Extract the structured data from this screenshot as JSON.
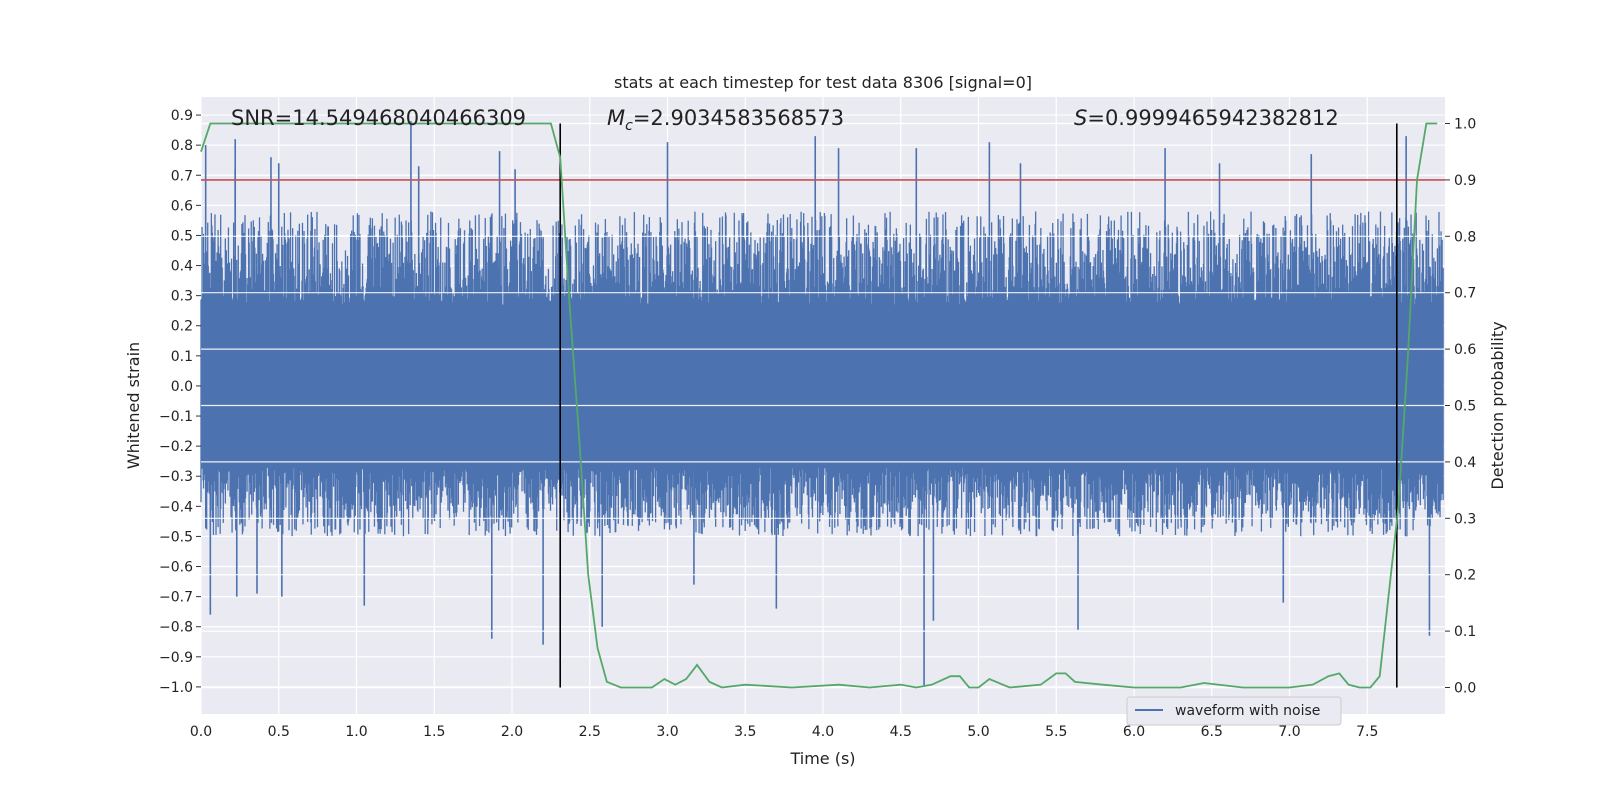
{
  "chart_data": {
    "type": "line",
    "title": "stats at each timestep for test data 8306 [signal=0]",
    "xlabel": "Time (s)",
    "ylabel": "Whitened strain",
    "y2label": "Detection probability",
    "xlim": [
      0.0,
      8.0
    ],
    "ylim": [
      -1.09,
      0.96
    ],
    "y2lim": [
      -0.047,
      1.047
    ],
    "xticks": [
      "0.0",
      "0.5",
      "1.0",
      "1.5",
      "2.0",
      "2.5",
      "3.0",
      "3.5",
      "4.0",
      "4.5",
      "5.0",
      "5.5",
      "6.0",
      "6.5",
      "7.0",
      "7.5"
    ],
    "yticks": [
      "-1.0",
      "-0.9",
      "-0.8",
      "-0.7",
      "-0.6",
      "-0.5",
      "-0.4",
      "-0.3",
      "-0.2",
      "-0.1",
      "0.0",
      "0.1",
      "0.2",
      "0.3",
      "0.4",
      "0.5",
      "0.6",
      "0.7",
      "0.8",
      "0.9"
    ],
    "y2ticks": [
      "0.0",
      "0.1",
      "0.2",
      "0.3",
      "0.4",
      "0.5",
      "0.6",
      "0.7",
      "0.8",
      "0.9",
      "1.0"
    ],
    "grid": true,
    "legend_position": "lower-right",
    "annotations": {
      "snr": "SNR=14.549468040466309",
      "mc_symbol": "M",
      "mc_sub": "c",
      "mc_value": "=2.9034583568573",
      "s_symbol": "S",
      "s_value": "=0.9999465942382812"
    },
    "vertical_lines": [
      2.31,
      7.69
    ],
    "threshold": {
      "axis": "right",
      "value": 0.9
    },
    "waveform": {
      "name": "waveform with noise",
      "baseline_abs": 0.27,
      "typical_max": 0.58,
      "typical_min": -0.5,
      "peaks": [
        {
          "x": 0.03,
          "y": 0.8
        },
        {
          "x": 0.06,
          "y": -0.76
        },
        {
          "x": 0.23,
          "y": -0.7
        },
        {
          "x": 0.22,
          "y": 0.72
        },
        {
          "x": 0.22,
          "y": 0.82
        },
        {
          "x": 0.36,
          "y": -0.69
        },
        {
          "x": 0.45,
          "y": 0.76
        },
        {
          "x": 0.5,
          "y": 0.74
        },
        {
          "x": 0.52,
          "y": -0.7
        },
        {
          "x": 1.05,
          "y": -0.73
        },
        {
          "x": 1.35,
          "y": 0.88
        },
        {
          "x": 1.4,
          "y": 0.73
        },
        {
          "x": 1.87,
          "y": -0.84
        },
        {
          "x": 1.92,
          "y": 0.78
        },
        {
          "x": 2.02,
          "y": 0.72
        },
        {
          "x": 2.2,
          "y": -0.86
        },
        {
          "x": 2.58,
          "y": -0.8
        },
        {
          "x": 3.0,
          "y": 0.81
        },
        {
          "x": 3.17,
          "y": -0.66
        },
        {
          "x": 3.7,
          "y": -0.74
        },
        {
          "x": 3.95,
          "y": 0.83
        },
        {
          "x": 4.1,
          "y": 0.79
        },
        {
          "x": 4.6,
          "y": 0.79
        },
        {
          "x": 4.65,
          "y": -1.0
        },
        {
          "x": 4.71,
          "y": -0.78
        },
        {
          "x": 5.07,
          "y": 0.81
        },
        {
          "x": 5.27,
          "y": 0.74
        },
        {
          "x": 5.64,
          "y": -0.81
        },
        {
          "x": 6.2,
          "y": 0.79
        },
        {
          "x": 6.55,
          "y": 0.74
        },
        {
          "x": 6.96,
          "y": -0.72
        },
        {
          "x": 7.14,
          "y": 0.77
        },
        {
          "x": 7.75,
          "y": 0.83
        },
        {
          "x": 7.9,
          "y": -0.83
        }
      ]
    },
    "probability": {
      "x": [
        0.0,
        0.06,
        0.12,
        0.5,
        1.0,
        1.5,
        2.0,
        2.25,
        2.31,
        2.37,
        2.43,
        2.49,
        2.55,
        2.61,
        2.7,
        2.9,
        2.98,
        3.05,
        3.12,
        3.19,
        3.27,
        3.35,
        3.5,
        3.8,
        4.1,
        4.3,
        4.5,
        4.6,
        4.7,
        4.82,
        4.88,
        4.94,
        5.0,
        5.07,
        5.2,
        5.4,
        5.5,
        5.56,
        5.62,
        5.8,
        6.0,
        6.3,
        6.45,
        6.7,
        7.0,
        7.15,
        7.25,
        7.32,
        7.38,
        7.45,
        7.52,
        7.58,
        7.64,
        7.7,
        7.76,
        7.82,
        7.88,
        7.95
      ],
      "y": [
        0.95,
        1.0,
        1.0,
        1.0,
        1.0,
        1.0,
        1.0,
        1.0,
        0.94,
        0.68,
        0.45,
        0.2,
        0.07,
        0.01,
        0.0,
        0.0,
        0.015,
        0.005,
        0.015,
        0.04,
        0.01,
        0.0,
        0.005,
        0.0,
        0.005,
        0.0,
        0.005,
        0.0,
        0.005,
        0.02,
        0.02,
        0.0,
        0.0,
        0.015,
        0.0,
        0.005,
        0.025,
        0.025,
        0.01,
        0.005,
        0.0,
        0.0,
        0.008,
        0.0,
        0.0,
        0.005,
        0.02,
        0.025,
        0.005,
        0.0,
        0.0,
        0.02,
        0.17,
        0.32,
        0.58,
        0.9,
        1.0,
        1.0
      ]
    },
    "colors": {
      "waveform": "#4c72b0",
      "probability": "#55a868",
      "threshold": "#c44e52",
      "vertical": "#000000",
      "background": "#eaeaf2",
      "grid": "#ffffff"
    }
  }
}
